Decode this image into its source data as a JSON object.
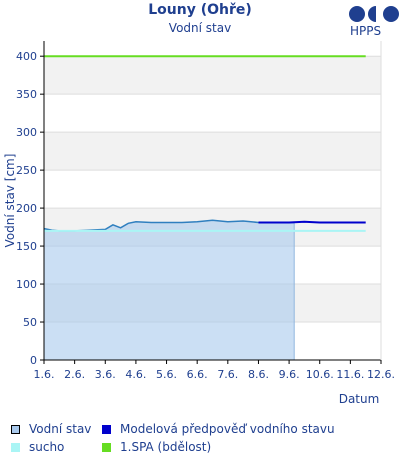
{
  "header": {
    "title": "Louny (Ohře)",
    "subtitle": "Vodní stav",
    "logo_text": "HPPS"
  },
  "colors": {
    "observed_line": "#2f7fbf",
    "observed_fill": "#a9c9ec",
    "forecast": "#0000cc",
    "drought": "#aaf5f5",
    "spa1": "#66dd22",
    "title": "#1f3f8f"
  },
  "legend": [
    {
      "key": "observed",
      "label": "Vodní stav"
    },
    {
      "key": "forecast",
      "label": "Modelová předpověď vodního stavu"
    },
    {
      "key": "drought",
      "label": "sucho"
    },
    {
      "key": "spa1",
      "label": "1.SPA (bdělost)"
    }
  ],
  "chart_data": {
    "type": "line",
    "ylabel": "Vodní stav [cm]",
    "xlabel": "Datum",
    "ylim": [
      0,
      420
    ],
    "yticks": [
      0,
      50,
      100,
      150,
      200,
      250,
      300,
      350,
      400
    ],
    "xlim": [
      "2024-06-01",
      "2024-06-12"
    ],
    "xticks": [
      "1.6.",
      "2.6.",
      "3.6.",
      "4.6.",
      "5.6.",
      "6.6.",
      "7.6.",
      "8.6.",
      "9.6.",
      "10.6.",
      "11.6.",
      "12.6."
    ],
    "grid": true,
    "legend_position": "bottom",
    "series": [
      {
        "key": "observed",
        "name": "Vodní stav",
        "style": "area",
        "x": [
          "2024-06-01 00:00",
          "2024-06-01 06:00",
          "2024-06-01 12:00",
          "2024-06-02 00:00",
          "2024-06-02 12:00",
          "2024-06-03 00:00",
          "2024-06-03 06:00",
          "2024-06-03 12:00",
          "2024-06-03 18:00",
          "2024-06-04 00:00",
          "2024-06-04 12:00",
          "2024-06-05 00:00",
          "2024-06-05 12:00",
          "2024-06-06 00:00",
          "2024-06-06 12:00",
          "2024-06-07 00:00",
          "2024-06-07 12:00",
          "2024-06-08 00:00",
          "2024-06-08 12:00",
          "2024-06-09 00:00",
          "2024-06-09 04:00"
        ],
        "y": [
          173,
          171,
          170,
          170,
          171,
          172,
          178,
          174,
          180,
          182,
          181,
          181,
          181,
          182,
          184,
          182,
          183,
          181,
          181,
          181,
          181
        ]
      },
      {
        "key": "forecast",
        "name": "Modelová předpověď vodního stavu",
        "style": "line",
        "x": [
          "2024-06-08 00:00",
          "2024-06-09 00:00",
          "2024-06-09 12:00",
          "2024-06-10 00:00",
          "2024-06-11 00:00",
          "2024-06-11 12:00"
        ],
        "y": [
          181,
          181,
          182,
          181,
          181,
          181
        ]
      },
      {
        "key": "drought",
        "name": "sucho",
        "style": "line",
        "x": [
          "2024-06-01 00:00",
          "2024-06-11 12:00"
        ],
        "y": [
          170,
          170
        ]
      },
      {
        "key": "spa1",
        "name": "1.SPA (bdělost)",
        "style": "line",
        "x": [
          "2024-06-01 00:00",
          "2024-06-11 12:00"
        ],
        "y": [
          400,
          400
        ]
      }
    ]
  }
}
